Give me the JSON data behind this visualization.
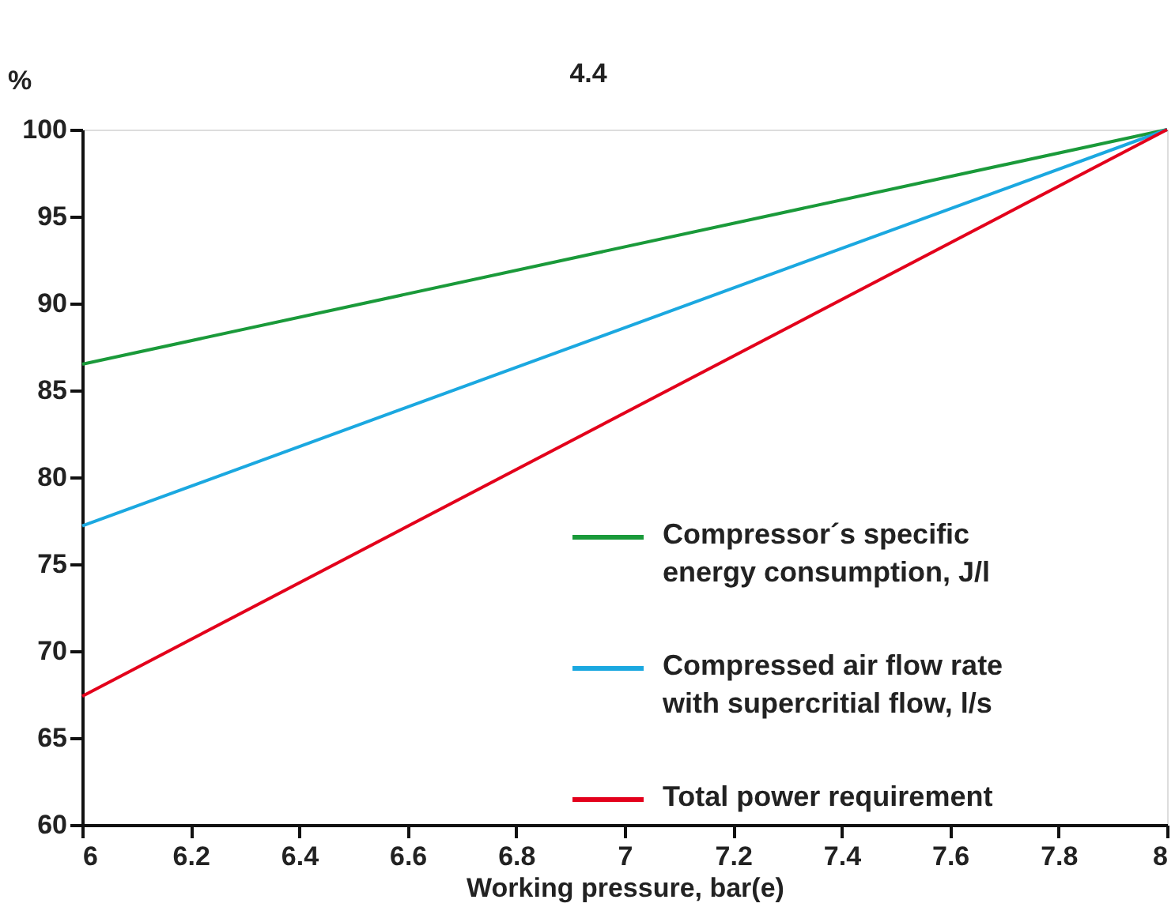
{
  "chart_data": {
    "type": "line",
    "x": [
      6,
      8
    ],
    "series": [
      {
        "name": "Compressor´s specific\nenergy consumption, J/l",
        "color": "#1a9a3a",
        "values": [
          86.5,
          100
        ]
      },
      {
        "name": "Compressed air flow rate\nwith supercritial flow, l/s",
        "color": "#1ba8e0",
        "values": [
          77.2,
          100
        ]
      },
      {
        "name": "Total power requirement",
        "color": "#e3001b",
        "values": [
          67.4,
          100
        ]
      }
    ],
    "xlim": [
      6,
      8
    ],
    "xticks": [
      6,
      6.2,
      6.4,
      6.6,
      6.8,
      7,
      7.2,
      7.4,
      7.6,
      7.8,
      8
    ],
    "ylim": [
      60,
      100
    ],
    "yticks": [
      60,
      65,
      70,
      75,
      80,
      85,
      90,
      95,
      100
    ],
    "xlabel": "Working pressure, bar(e)",
    "ylabel": "%",
    "annotations": [
      "4.4"
    ],
    "legend": "bottom right",
    "grid": false,
    "marker": "none",
    "line_style": "solid"
  }
}
